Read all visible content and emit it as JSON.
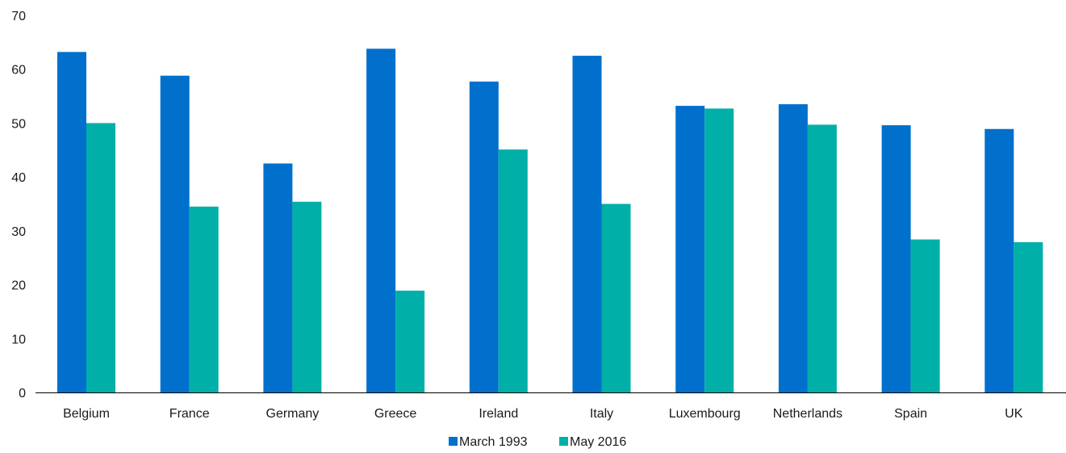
{
  "chart_data": {
    "type": "bar",
    "title": "",
    "xlabel": "",
    "ylabel": "",
    "ylim": [
      0,
      70
    ],
    "yticks": [
      0,
      10,
      20,
      30,
      40,
      50,
      60,
      70
    ],
    "grid": false,
    "legend_position": "bottom",
    "categories": [
      "Belgium",
      "France",
      "Germany",
      "Greece",
      "Ireland",
      "Italy",
      "Luxembourg",
      "Netherlands",
      "Spain",
      "UK"
    ],
    "series": [
      {
        "name": "March 1993",
        "color": "#0070cc",
        "values": [
          63.2,
          58.8,
          42.5,
          63.8,
          57.7,
          62.5,
          53.2,
          53.5,
          49.6,
          48.9
        ]
      },
      {
        "name": "May 2016",
        "color": "#00b0a8",
        "values": [
          50.0,
          34.5,
          35.4,
          18.9,
          45.1,
          35.0,
          52.7,
          49.7,
          28.4,
          27.9
        ]
      }
    ]
  }
}
